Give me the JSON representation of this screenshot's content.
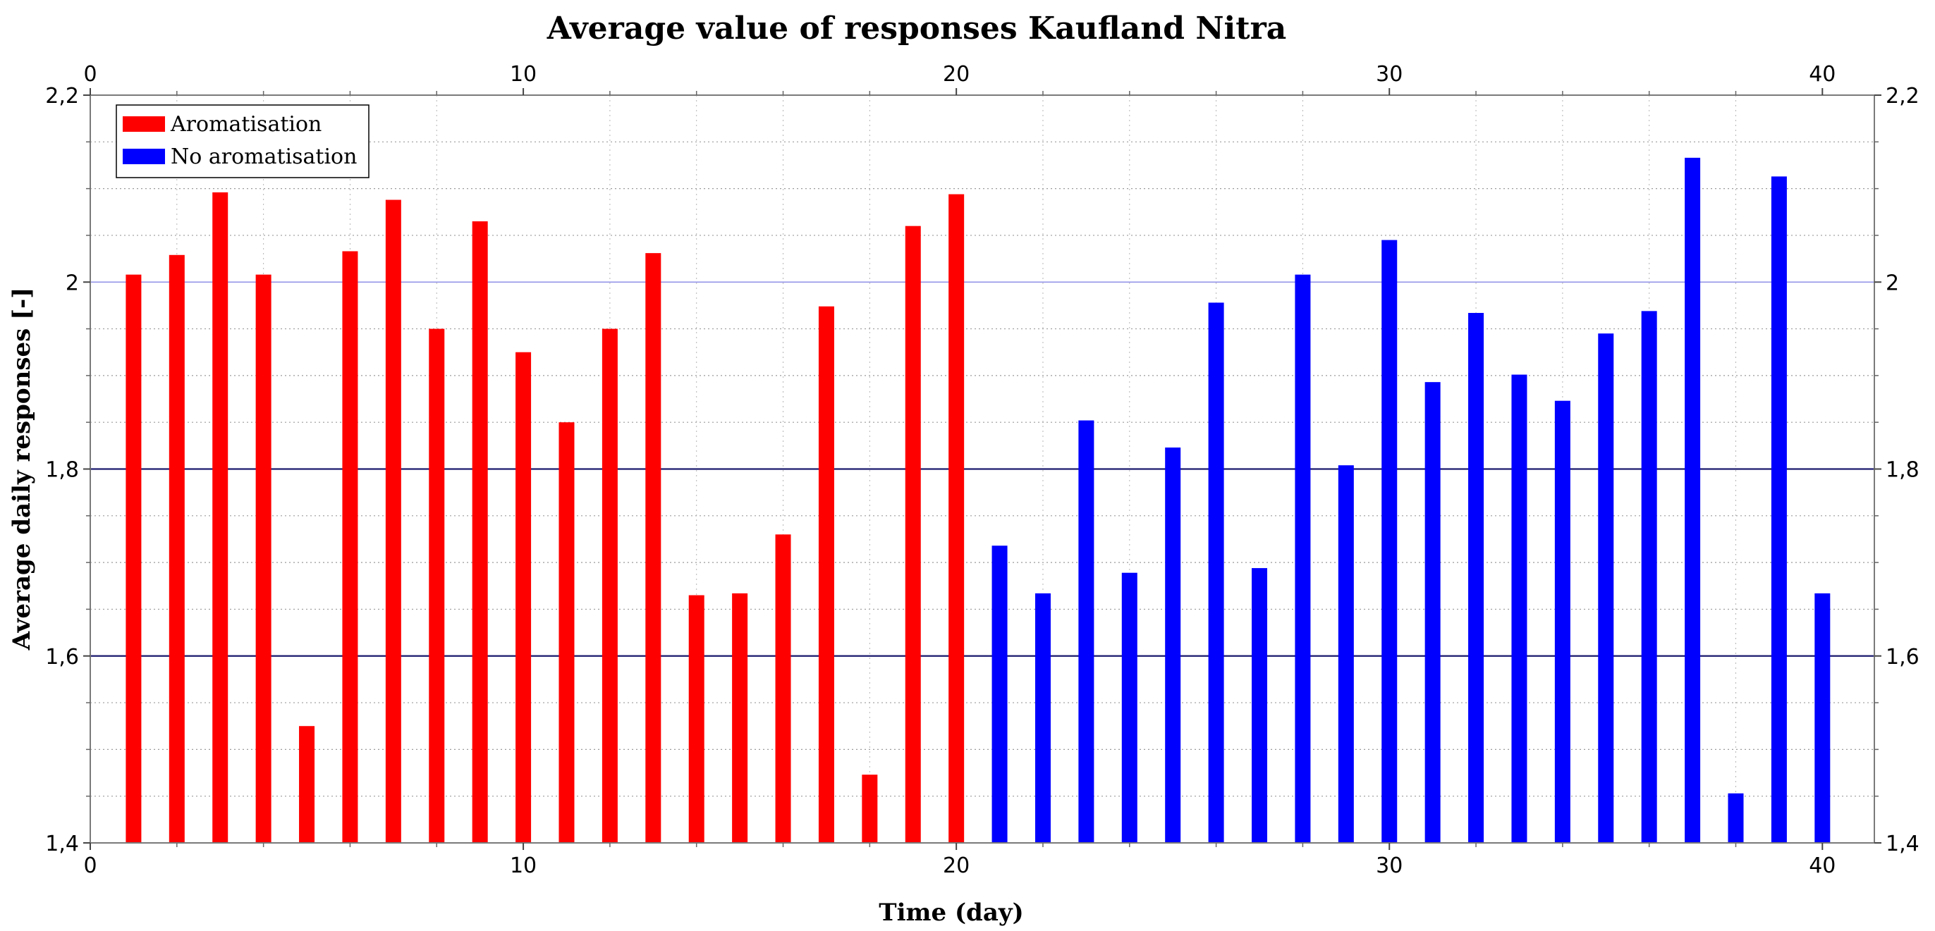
{
  "chart_data": {
    "type": "bar",
    "title": "Average value of responses Kaufland Nitra",
    "xlabel": "Time (day)",
    "ylabel": "Average daily responses [-]",
    "xlim": [
      0,
      41.2
    ],
    "ylim": [
      1.4,
      2.2
    ],
    "x_ticks": [
      0,
      10,
      20,
      30,
      40
    ],
    "y_ticks": [
      1.4,
      1.6,
      1.8,
      2.0,
      2.2
    ],
    "y_tick_labels": [
      "1,4",
      "1,6",
      "1,8",
      "2",
      "2,2"
    ],
    "major_gridline_values": [
      1.6,
      1.8
    ],
    "light_gridline_value": 2.0,
    "grid": true,
    "legend_position": "top-left",
    "series": [
      {
        "name": "Aromatisation",
        "color": "#ff0000",
        "x": [
          1,
          2,
          3,
          4,
          5,
          6,
          7,
          8,
          9,
          10,
          11,
          12,
          13,
          14,
          15,
          16,
          17,
          18,
          19,
          20
        ],
        "values": [
          2.008,
          2.029,
          2.096,
          2.008,
          1.525,
          2.033,
          2.088,
          1.95,
          2.065,
          1.925,
          1.85,
          1.95,
          2.031,
          1.665,
          1.667,
          1.73,
          1.974,
          1.473,
          2.06,
          2.094
        ]
      },
      {
        "name": "No aromatisation",
        "color": "#0000ff",
        "x": [
          21,
          22,
          23,
          24,
          25,
          26,
          27,
          28,
          29,
          30,
          31,
          32,
          33,
          34,
          35,
          36,
          37,
          38,
          39,
          40
        ],
        "values": [
          1.718,
          1.667,
          1.852,
          1.689,
          1.823,
          1.978,
          1.694,
          2.008,
          1.804,
          2.045,
          1.893,
          1.967,
          1.901,
          1.873,
          1.945,
          1.969,
          2.133,
          1.453,
          2.113,
          1.667
        ]
      }
    ]
  }
}
